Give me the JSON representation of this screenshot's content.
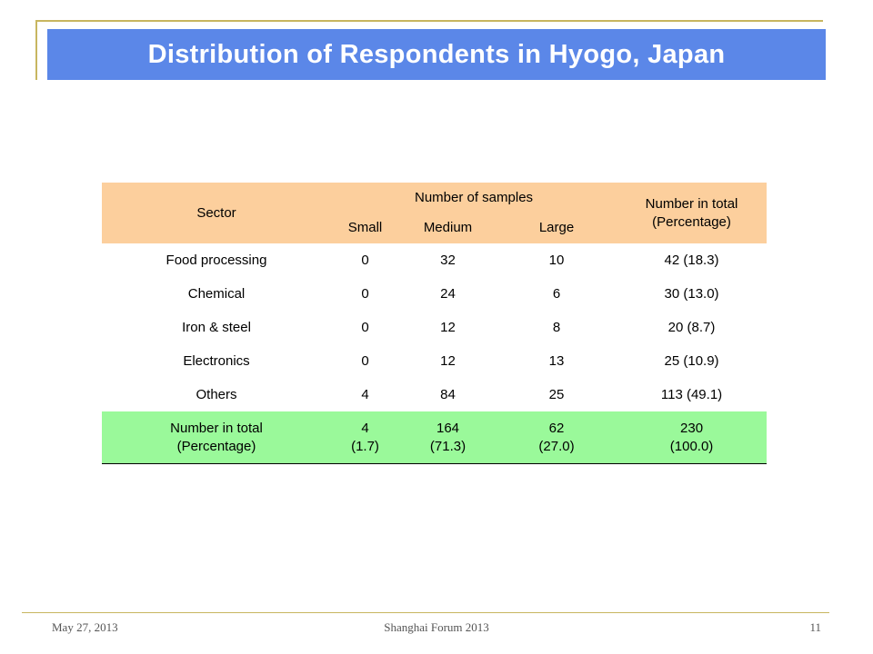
{
  "slide": {
    "title": "Distribution of Respondents in Hyogo, Japan"
  },
  "table": {
    "header": {
      "sector": "Sector",
      "samples_group": "Number of samples",
      "small": "Small",
      "medium": "Medium",
      "large": "Large",
      "total_line1": "Number in total",
      "total_line2": "(Percentage)"
    },
    "rows": [
      {
        "sector": "Food processing",
        "small": "0",
        "medium": "32",
        "large": "10",
        "total": "42 (18.3)"
      },
      {
        "sector": "Chemical",
        "small": "0",
        "medium": "24",
        "large": "6",
        "total": "30 (13.0)"
      },
      {
        "sector": "Iron & steel",
        "small": "0",
        "medium": "12",
        "large": "8",
        "total": "20 (8.7)"
      },
      {
        "sector": "Electronics",
        "small": "0",
        "medium": "12",
        "large": "13",
        "total": "25 (10.9)"
      },
      {
        "sector": "Others",
        "small": "4",
        "medium": "84",
        "large": "25",
        "total": "113 (49.1)"
      }
    ],
    "total_row": {
      "label_line1": "Number in total",
      "label_line2": "(Percentage)",
      "small_count": "4",
      "small_pct": "(1.7)",
      "medium_count": "164",
      "medium_pct": "(71.3)",
      "large_count": "62",
      "large_pct": "(27.0)",
      "total_count": "230",
      "total_pct": "(100.0)"
    }
  },
  "footer": {
    "date": "May 27, 2013",
    "event": "Shanghai Forum 2013",
    "page_number": "11"
  },
  "colors": {
    "title_bar": "#5b87e8",
    "header_fill": "#fccf9d",
    "total_fill": "#9af99a",
    "accent_line": "#c8b660"
  }
}
